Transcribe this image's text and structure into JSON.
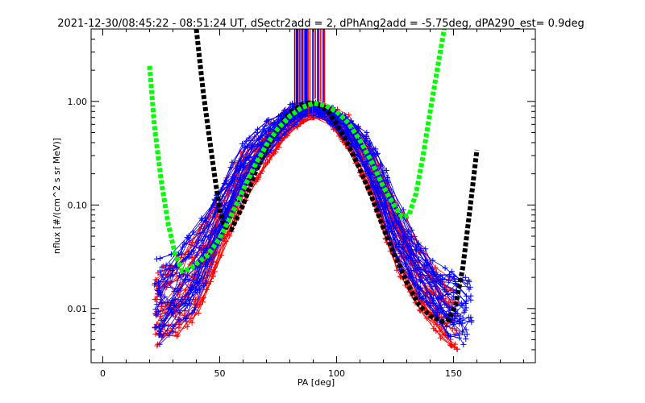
{
  "chart_data": {
    "type": "scatter",
    "title": "2021-12-30/08:45:22 - 08:51:24 UT, dSectr2add = 2, dPhAng2add = -5.75deg, dPA290_est=   0.9deg",
    "xlabel": "PA [deg]",
    "ylabel": "nflux [#/(cm^2 s sr MeV)]",
    "xlim": [
      -5,
      185
    ],
    "ylim": [
      0.003,
      5
    ],
    "yscale": "log",
    "grid": false,
    "legend": "none",
    "x_ticks": [
      {
        "value": 0,
        "label": "0"
      },
      {
        "value": 50,
        "label": "50"
      },
      {
        "value": 100,
        "label": "100"
      },
      {
        "value": 150,
        "label": "150"
      }
    ],
    "y_ticks": [
      {
        "value": 0.01,
        "label": "0.01"
      },
      {
        "value": 0.1,
        "label": "0.10"
      },
      {
        "value": 1,
        "label": "1.00"
      }
    ],
    "colors": {
      "red": "#ff0000",
      "blue": "#0000ff",
      "black": "#000000",
      "green": "#00ff00"
    },
    "series": [
      {
        "color": "#ff0000",
        "marker": "plus",
        "rendering": "many thin lines with plus markers",
        "envelope": [
          [
            22,
            0.004,
            0.024
          ],
          [
            30,
            0.005,
            0.03
          ],
          [
            40,
            0.008,
            0.05
          ],
          [
            50,
            0.03,
            0.14
          ],
          [
            60,
            0.1,
            0.35
          ],
          [
            70,
            0.25,
            0.6
          ],
          [
            80,
            0.5,
            0.9
          ],
          [
            88,
            0.7,
            0.95
          ],
          [
            95,
            0.7,
            0.95
          ],
          [
            105,
            0.35,
            0.75
          ],
          [
            115,
            0.12,
            0.4
          ],
          [
            125,
            0.025,
            0.12
          ],
          [
            135,
            0.01,
            0.045
          ],
          [
            145,
            0.005,
            0.02
          ],
          [
            152,
            0.004,
            0.02
          ]
        ]
      },
      {
        "color": "#0000ff",
        "marker": "plus",
        "rendering": "many thin lines with plus markers",
        "envelope": [
          [
            22,
            0.004,
            0.03
          ],
          [
            30,
            0.006,
            0.035
          ],
          [
            40,
            0.01,
            0.06
          ],
          [
            50,
            0.04,
            0.16
          ],
          [
            60,
            0.13,
            0.4
          ],
          [
            70,
            0.3,
            0.65
          ],
          [
            80,
            0.55,
            0.95
          ],
          [
            88,
            0.75,
            1.0
          ],
          [
            95,
            0.7,
            0.95
          ],
          [
            105,
            0.4,
            0.75
          ],
          [
            115,
            0.15,
            0.45
          ],
          [
            125,
            0.03,
            0.14
          ],
          [
            135,
            0.012,
            0.045
          ],
          [
            145,
            0.006,
            0.025
          ],
          [
            158,
            0.004,
            0.022
          ]
        ]
      },
      {
        "color": "#000000",
        "style": "thick-dashed",
        "x": [
          40,
          43,
          46,
          48,
          50,
          52,
          55,
          60,
          65,
          70,
          75,
          80,
          85,
          88,
          92,
          96,
          100,
          105,
          110,
          115,
          120,
          125,
          130,
          135,
          140,
          145,
          148,
          151,
          154,
          157,
          160
        ],
        "y": [
          5,
          1.2,
          0.38,
          0.18,
          0.09,
          0.063,
          0.058,
          0.1,
          0.2,
          0.35,
          0.55,
          0.78,
          0.93,
          0.97,
          0.94,
          0.82,
          0.6,
          0.38,
          0.22,
          0.12,
          0.06,
          0.032,
          0.018,
          0.011,
          0.0085,
          0.0075,
          0.0078,
          0.011,
          0.025,
          0.09,
          0.34
        ]
      },
      {
        "color": "#00ff00",
        "style": "thick-dashed",
        "x": [
          20,
          22,
          25,
          28,
          31,
          34,
          37,
          40,
          45,
          50,
          55,
          60,
          65,
          70,
          75,
          80,
          85,
          90,
          95,
          100,
          105,
          110,
          115,
          120,
          125,
          128,
          131,
          134,
          137,
          140,
          143,
          146
        ],
        "y": [
          2.2,
          0.6,
          0.17,
          0.065,
          0.033,
          0.023,
          0.024,
          0.027,
          0.033,
          0.048,
          0.08,
          0.14,
          0.24,
          0.38,
          0.55,
          0.72,
          0.87,
          0.96,
          0.92,
          0.8,
          0.62,
          0.42,
          0.26,
          0.15,
          0.095,
          0.077,
          0.08,
          0.13,
          0.3,
          0.8,
          2.0,
          5.0
        ]
      }
    ],
    "annotation": "dense vertical red and blue lines near PA 85-95 extending above plot top"
  }
}
